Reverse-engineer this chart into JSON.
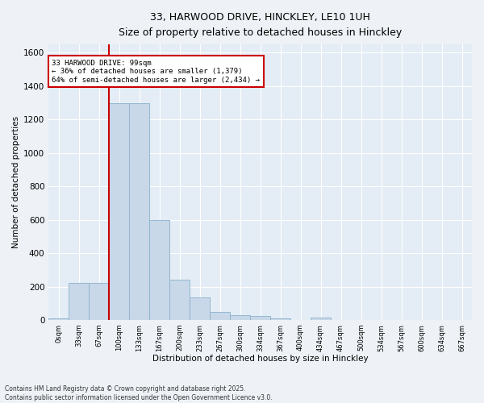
{
  "title_line1": "33, HARWOOD DRIVE, HINCKLEY, LE10 1UH",
  "title_line2": "Size of property relative to detached houses in Hinckley",
  "xlabel": "Distribution of detached houses by size in Hinckley",
  "ylabel": "Number of detached properties",
  "bin_labels": [
    "0sqm",
    "33sqm",
    "67sqm",
    "100sqm",
    "133sqm",
    "167sqm",
    "200sqm",
    "233sqm",
    "267sqm",
    "300sqm",
    "334sqm",
    "367sqm",
    "400sqm",
    "434sqm",
    "467sqm",
    "500sqm",
    "534sqm",
    "567sqm",
    "600sqm",
    "634sqm",
    "667sqm"
  ],
  "bar_heights": [
    10,
    220,
    220,
    1300,
    1300,
    600,
    240,
    135,
    50,
    30,
    25,
    10,
    0,
    15,
    0,
    0,
    0,
    0,
    0,
    0,
    0
  ],
  "bar_color": "#c8d8e8",
  "bar_edge_color": "#8ab0cc",
  "vline_x": 3.0,
  "vline_color": "#cc0000",
  "annotation_text": "33 HARWOOD DRIVE: 99sqm\n← 36% of detached houses are smaller (1,379)\n64% of semi-detached houses are larger (2,434) →",
  "annotation_box_color": "#cc0000",
  "ylim": [
    0,
    1650
  ],
  "yticks": [
    0,
    200,
    400,
    600,
    800,
    1000,
    1200,
    1400,
    1600
  ],
  "footer_line1": "Contains HM Land Registry data © Crown copyright and database right 2025.",
  "footer_line2": "Contains public sector information licensed under the Open Government Licence v3.0.",
  "bg_color": "#eef2f7",
  "plot_bg_color": "#e4edf5",
  "fig_width": 6.0,
  "fig_height": 5.0,
  "fig_dpi": 100
}
